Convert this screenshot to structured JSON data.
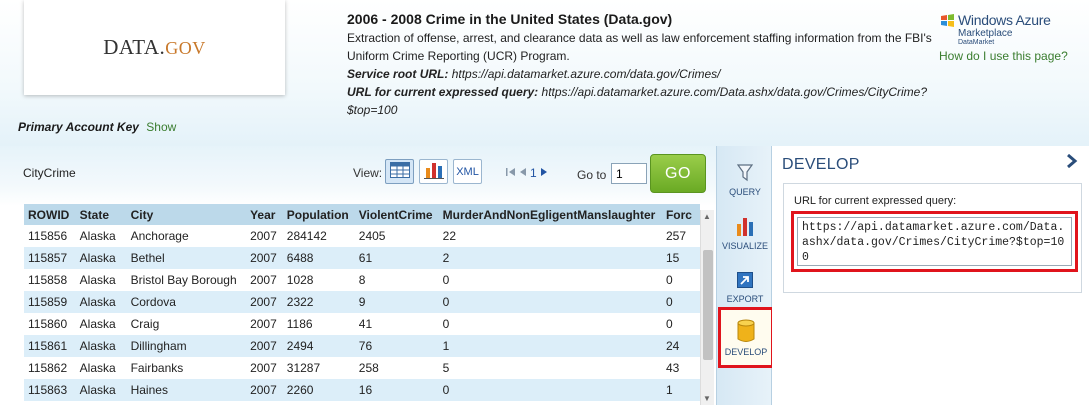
{
  "header": {
    "logo": {
      "main": "DATA.",
      "suffix": "GOV"
    },
    "title": "2006 - 2008 Crime in the United States (Data.gov)",
    "description": "Extraction of offense, arrest, and clearance data as well as law enforcement staffing information from the FBI's Uniform Crime Reporting (UCR) Program.",
    "service_root_label": "Service root URL:",
    "service_root_url": "https://api.datamarket.azure.com/data.gov/Crimes/",
    "query_url_label": "URL for current expressed query:",
    "query_url": "https://api.datamarket.azure.com/Data.ashx/data.gov/Crimes/CityCrime?$top=100",
    "brand_name": "Windows Azure",
    "brand_sub": "Marketplace",
    "brand_sub2": "DataMarket",
    "help_link": "How do I use this page?"
  },
  "account": {
    "label": "Primary Account Key",
    "show_link": "Show"
  },
  "toolbar": {
    "dataset_name": "CityCrime",
    "view_label": "View:",
    "view_xml": "XML",
    "page_number": "1",
    "goto_label": "Go to",
    "goto_value": "1",
    "go_label": "GO"
  },
  "table": {
    "headers": [
      "ROWID",
      "State",
      "City",
      "Year",
      "Population",
      "ViolentCrime",
      "MurderAndNonEgligentManslaughter",
      "Forc"
    ],
    "rows": [
      [
        "115856",
        "Alaska",
        "Anchorage",
        "2007",
        "284142",
        "2405",
        "22",
        "257"
      ],
      [
        "115857",
        "Alaska",
        "Bethel",
        "2007",
        "6488",
        "61",
        "2",
        "15"
      ],
      [
        "115858",
        "Alaska",
        "Bristol Bay Borough",
        "2007",
        "1028",
        "8",
        "0",
        "0"
      ],
      [
        "115859",
        "Alaska",
        "Cordova",
        "2007",
        "2322",
        "9",
        "0",
        "0"
      ],
      [
        "115860",
        "Alaska",
        "Craig",
        "2007",
        "1186",
        "41",
        "0",
        "0"
      ],
      [
        "115861",
        "Alaska",
        "Dillingham",
        "2007",
        "2494",
        "76",
        "1",
        "24"
      ],
      [
        "115862",
        "Alaska",
        "Fairbanks",
        "2007",
        "31287",
        "258",
        "5",
        "43"
      ],
      [
        "115863",
        "Alaska",
        "Haines",
        "2007",
        "2260",
        "16",
        "0",
        "1"
      ]
    ]
  },
  "side_tools": [
    {
      "label": "QUERY",
      "icon": "filter-icon"
    },
    {
      "label": "VISUALIZE",
      "icon": "bar-chart-icon"
    },
    {
      "label": "EXPORT",
      "icon": "export-icon"
    },
    {
      "label": "DEVELOP",
      "icon": "database-icon",
      "selected": true
    }
  ],
  "develop": {
    "title": "DEVELOP",
    "url_label": "URL for current expressed query:",
    "url_value": "https://api.datamarket.azure.com/Data.ashx/data.gov/Crimes/CityCrime?$top=100"
  },
  "colors": {
    "accent_blue": "#2a4d7a",
    "link_green": "#3a7d2f",
    "go_green": "#6aaa24",
    "highlight_red": "#e0141c",
    "table_header": "#bcd9ea",
    "row_alt": "#dceef9"
  }
}
